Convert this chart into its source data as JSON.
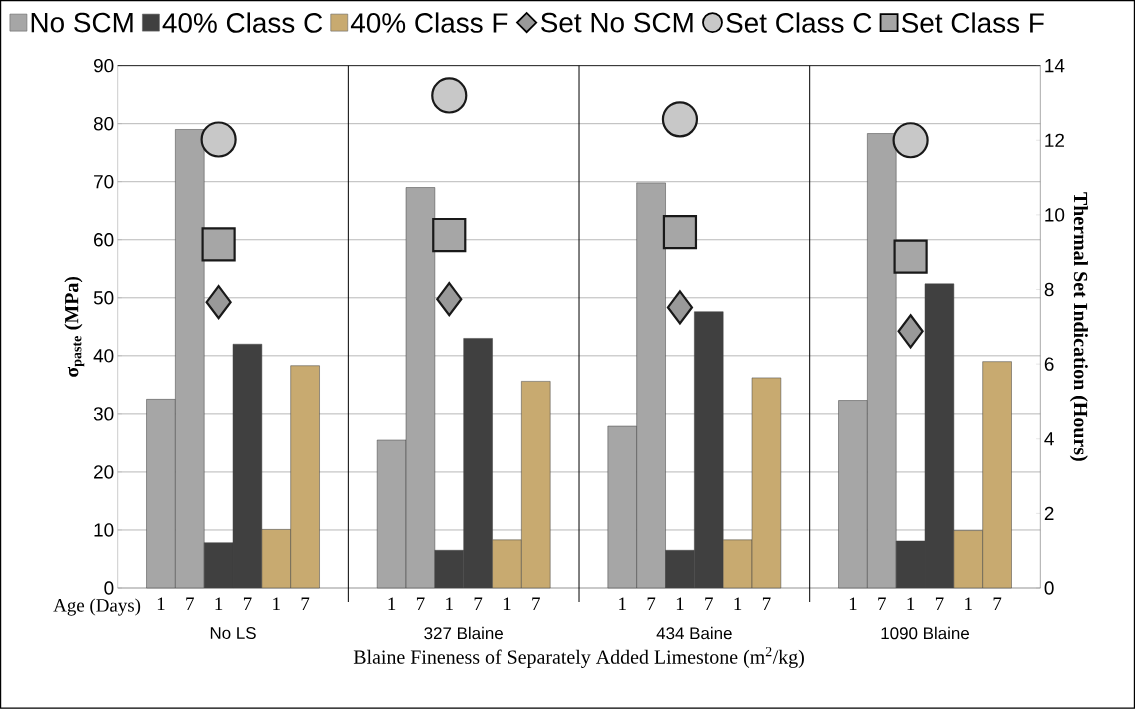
{
  "chart_data": {
    "type": "bar",
    "xlabel": "Blaine Fineness of Separately Added Limestone (m$^{2}$/kg)",
    "ylabel": "σ$_{paste}$ (MPa)",
    "y2label": "Thermal Set Indication (Hours)",
    "annotations": [
      "Age (Days)",
      "No LS",
      "327 Blaine",
      "434 Baine",
      "1090 Blaine"
    ],
    "categories": [
      null,
      "1",
      "7",
      "1",
      "7",
      "1",
      "7",
      null,
      null,
      "1",
      "7",
      "1",
      "7",
      "1",
      "7",
      null,
      null,
      "1",
      "7",
      "1",
      "7",
      "1",
      "7",
      null,
      null,
      "1",
      "7",
      "1",
      "7",
      "1",
      "7",
      null
    ],
    "series": [
      {
        "name": "No SCM",
        "color": "#a6a6a6",
        "values": [
          null,
          32.5,
          79.0,
          null,
          null,
          null,
          null,
          null,
          null,
          25.5,
          69.0,
          null,
          null,
          null,
          null,
          null,
          null,
          27.9,
          69.8,
          null,
          null,
          null,
          null,
          null,
          null,
          32.3,
          78.3,
          null,
          null,
          null,
          null,
          null
        ]
      },
      {
        "name": "40% Class C",
        "color": "#404040",
        "values": [
          null,
          null,
          null,
          7.8,
          42.0,
          null,
          null,
          null,
          null,
          null,
          null,
          6.5,
          43.0,
          null,
          null,
          null,
          null,
          null,
          null,
          6.5,
          47.6,
          null,
          null,
          null,
          null,
          null,
          null,
          8.1,
          52.4,
          null,
          null,
          null
        ]
      },
      {
        "name": "40% Class F",
        "color": "#c8aa70",
        "values": [
          null,
          null,
          null,
          null,
          null,
          10.1,
          38.3,
          null,
          null,
          null,
          null,
          null,
          null,
          8.3,
          35.6,
          null,
          null,
          null,
          null,
          null,
          null,
          8.3,
          36.2,
          null,
          null,
          null,
          null,
          null,
          null,
          9.9,
          39.0,
          null
        ]
      },
      {
        "name": "Set No SCM",
        "type": "scatter",
        "axis": "y2",
        "marker": "diamond",
        "color": "#999999",
        "values": [
          null,
          null,
          null,
          7.66,
          null,
          null,
          null,
          null,
          null,
          null,
          null,
          7.74,
          null,
          null,
          null,
          null,
          null,
          null,
          null,
          7.52,
          null,
          null,
          null,
          null,
          null,
          null,
          null,
          6.88,
          null,
          null,
          null,
          null
        ]
      },
      {
        "name": "Set Class C",
        "type": "scatter",
        "axis": "y2",
        "marker": "circle",
        "color": "#c8c8c8",
        "values": [
          null,
          null,
          null,
          12.02,
          null,
          null,
          null,
          null,
          null,
          null,
          null,
          13.2,
          null,
          null,
          null,
          null,
          null,
          null,
          null,
          12.56,
          null,
          null,
          null,
          null,
          null,
          null,
          null,
          12.0,
          null,
          null,
          null,
          null
        ]
      },
      {
        "name": "Set Class F",
        "type": "scatter",
        "axis": "y2",
        "marker": "square",
        "color": "#a6a6a6",
        "values": [
          null,
          null,
          null,
          9.21,
          null,
          null,
          null,
          null,
          null,
          null,
          null,
          9.46,
          null,
          null,
          null,
          null,
          null,
          null,
          null,
          9.54,
          null,
          null,
          null,
          null,
          null,
          null,
          null,
          8.88,
          null,
          null,
          null,
          null
        ]
      }
    ],
    "ylim": [
      0,
      90
    ],
    "yticks": [
      0,
      10,
      20,
      30,
      40,
      50,
      60,
      70,
      80,
      90
    ],
    "y2lim": [
      0,
      14
    ],
    "y2ticks": [
      0,
      2,
      4,
      6,
      8,
      10,
      12,
      14
    ],
    "grid": "y",
    "legend": "top"
  }
}
